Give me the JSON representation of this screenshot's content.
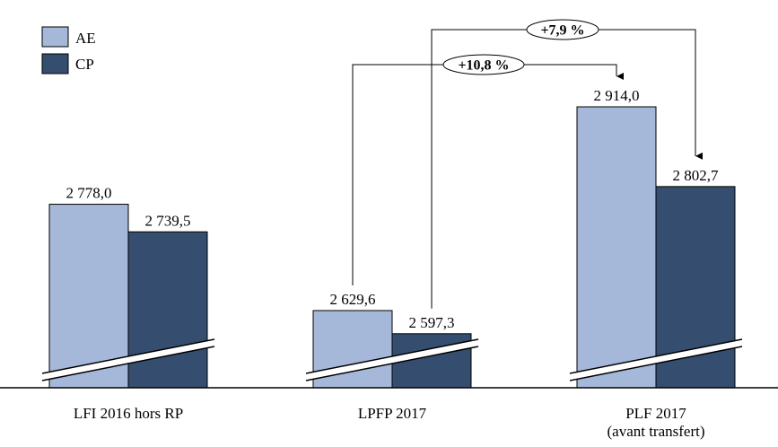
{
  "chart_data": {
    "type": "bar",
    "categories": [
      [
        "LFI 2016 hors RP"
      ],
      [
        "LPFP 2017"
      ],
      [
        "PLF 2017",
        "(avant transfert)"
      ]
    ],
    "series": [
      {
        "name": "AE",
        "values": [
          2778.0,
          2629.6,
          2914.0
        ],
        "labels": [
          "2 778,0",
          "2 629,6",
          "2 914,0"
        ]
      },
      {
        "name": "CP",
        "values": [
          2739.5,
          2597.3,
          2802.7
        ],
        "labels": [
          "2 739,5",
          "2 597,3",
          "2 802,7"
        ]
      }
    ],
    "colors": {
      "AE": "#a5b8d9",
      "CP": "#354e70",
      "outline": "#000000"
    },
    "legend_position": "top-left",
    "y_axis_broken": true,
    "annotations": [
      {
        "text": "+10,8 %",
        "from_category": 1,
        "to_category": 2,
        "series": "AE"
      },
      {
        "text": "+7,9 %",
        "from_category": 1,
        "to_category": 2,
        "series": "CP"
      }
    ]
  }
}
